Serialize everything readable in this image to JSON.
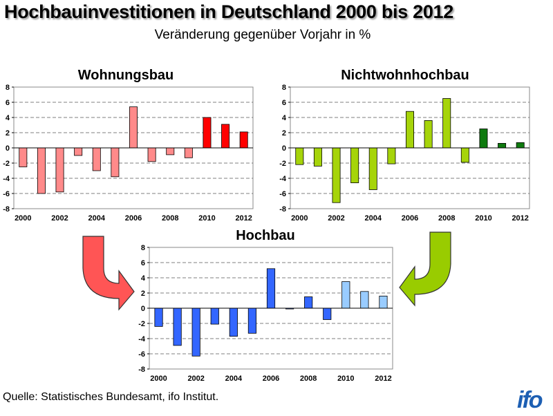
{
  "header": {
    "title": "Hochbauinvestitionen in Deutschland 2000 bis 2012",
    "subtitle": "Veränderung gegenüber Vorjahr in %"
  },
  "chart_data": [
    {
      "id": "wohnungsbau",
      "type": "bar",
      "title": "Wohnungsbau",
      "categories": [
        2000,
        2001,
        2002,
        2003,
        2004,
        2005,
        2006,
        2007,
        2008,
        2009,
        2010,
        2011,
        2012
      ],
      "x_tick_labels": [
        "2000",
        "2002",
        "2004",
        "2006",
        "2008",
        "2010",
        "2012"
      ],
      "values": [
        -2.5,
        -6.0,
        -5.8,
        -1.0,
        -3.0,
        -3.8,
        5.4,
        -1.8,
        -0.9,
        -1.3,
        4.0,
        3.1,
        2.1
      ],
      "colors": [
        "#ff8a8a",
        "#ff8a8a",
        "#ff8a8a",
        "#ff8a8a",
        "#ff8a8a",
        "#ff8a8a",
        "#ff8a8a",
        "#ff8a8a",
        "#ff8a8a",
        "#ff8a8a",
        "#ff0000",
        "#ff0000",
        "#ff0000"
      ],
      "ylim": [
        -8,
        8
      ],
      "yticks": [
        -8,
        -6,
        -4,
        -2,
        0,
        2,
        4,
        6,
        8
      ],
      "grid": "dashed-horizontal"
    },
    {
      "id": "nichtwohnhochbau",
      "type": "bar",
      "title": "Nichtwohnhochbau",
      "categories": [
        2000,
        2001,
        2002,
        2003,
        2004,
        2005,
        2006,
        2007,
        2008,
        2009,
        2010,
        2011,
        2012
      ],
      "x_tick_labels": [
        "2000",
        "2002",
        "2004",
        "2006",
        "2008",
        "2010",
        "2012"
      ],
      "values": [
        -2.2,
        -2.4,
        -7.2,
        -4.6,
        -5.5,
        -2.1,
        4.8,
        3.6,
        6.5,
        -1.9,
        2.5,
        0.6,
        0.7
      ],
      "colors": [
        "#a6d40a",
        "#a6d40a",
        "#a6d40a",
        "#a6d40a",
        "#a6d40a",
        "#a6d40a",
        "#a6d40a",
        "#a6d40a",
        "#a6d40a",
        "#a6d40a",
        "#0e7a0e",
        "#0e7a0e",
        "#0e7a0e"
      ],
      "ylim": [
        -8,
        8
      ],
      "yticks": [
        -8,
        -6,
        -4,
        -2,
        0,
        2,
        4,
        6,
        8
      ],
      "grid": "dashed-horizontal"
    },
    {
      "id": "hochbau",
      "type": "bar",
      "title": "Hochbau",
      "categories": [
        2000,
        2001,
        2002,
        2003,
        2004,
        2005,
        2006,
        2007,
        2008,
        2009,
        2010,
        2011,
        2012
      ],
      "x_tick_labels": [
        "2000",
        "2002",
        "2004",
        "2006",
        "2008",
        "2010",
        "2012"
      ],
      "values": [
        -2.4,
        -4.9,
        -6.3,
        -2.1,
        -3.7,
        -3.3,
        5.2,
        -0.1,
        1.5,
        -1.5,
        3.5,
        2.2,
        1.6
      ],
      "colors": [
        "#3366ff",
        "#3366ff",
        "#3366ff",
        "#3366ff",
        "#3366ff",
        "#3366ff",
        "#3366ff",
        "#3366ff",
        "#3366ff",
        "#3366ff",
        "#99ccff",
        "#99ccff",
        "#99ccff"
      ],
      "ylim": [
        -8,
        8
      ],
      "yticks": [
        -8,
        -6,
        -4,
        -2,
        0,
        2,
        4,
        6,
        8
      ],
      "grid": "dashed-horizontal"
    }
  ],
  "arrows": {
    "left_color": "#ff5555",
    "right_color": "#99cc00",
    "left_icon": "curved-arrow-right-icon",
    "right_icon": "curved-arrow-left-icon"
  },
  "footer": {
    "source": "Quelle: Statistisches Bundesamt, ifo Institut.",
    "logo": "ifo"
  }
}
